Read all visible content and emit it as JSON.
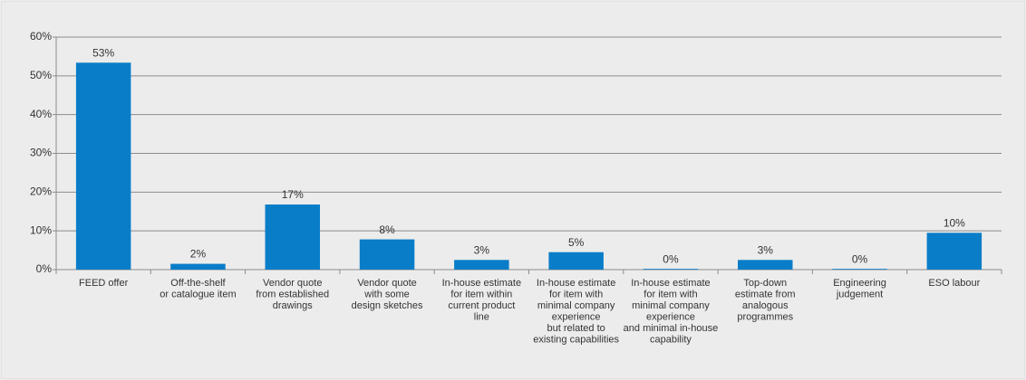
{
  "chart_data": {
    "type": "bar",
    "categories": [
      [
        "FEED offer"
      ],
      [
        "Off-the-shelf",
        "or catalogue item"
      ],
      [
        "Vendor quote",
        "from established",
        "drawings"
      ],
      [
        "Vendor quote",
        "with some",
        "design sketches"
      ],
      [
        "In-house estimate",
        "for item within",
        "current product",
        "line"
      ],
      [
        "In-house estimate",
        "for item with",
        "minimal company",
        "experience",
        "but related to",
        "existing capabilities"
      ],
      [
        "In-house estimate",
        "for item with",
        "minimal company",
        "experience",
        "and minimal in-house",
        "capability"
      ],
      [
        "Top-down",
        "estimate from",
        "analogous",
        "programmes"
      ],
      [
        "Engineering",
        "judgement"
      ],
      [
        "ESO labour"
      ]
    ],
    "values": [
      53.4,
      1.5,
      16.8,
      7.8,
      2.5,
      4.5,
      0.2,
      2.5,
      0.2,
      9.5
    ],
    "value_labels": [
      "53%",
      "2%",
      "17%",
      "8%",
      "3%",
      "5%",
      "0%",
      "3%",
      "0%",
      "10%"
    ],
    "color": "#0a7dc8",
    "ylim": [
      0,
      60
    ],
    "yticks": [
      {
        "value": 0,
        "label": "0%"
      },
      {
        "value": 10,
        "label": "10%"
      },
      {
        "value": 20,
        "label": "20%"
      },
      {
        "value": 30,
        "label": "30%"
      },
      {
        "value": 40,
        "label": "40%"
      },
      {
        "value": 50,
        "label": "50%"
      },
      {
        "value": 60,
        "label": "60%"
      }
    ],
    "grid": true
  }
}
